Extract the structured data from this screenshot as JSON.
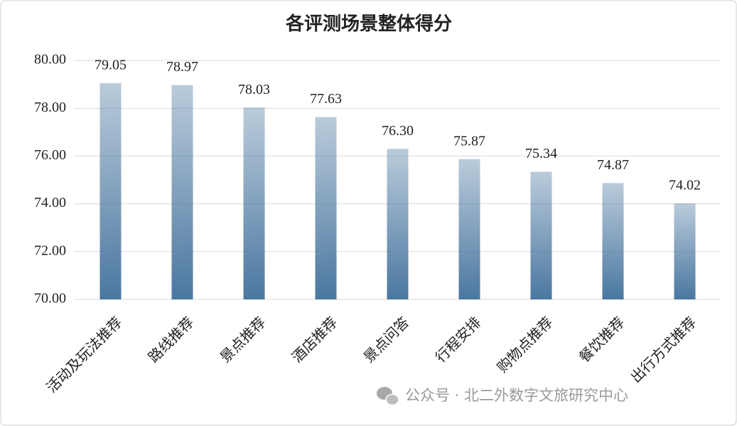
{
  "chart_data": {
    "type": "bar",
    "title": "各评测场景整体得分",
    "categories": [
      "活动及玩法推荐",
      "路线推荐",
      "景点推荐",
      "酒店推荐",
      "景点问答",
      "行程安排",
      "购物点推荐",
      "餐饮推荐",
      "出行方式推荐"
    ],
    "values": [
      79.05,
      78.97,
      78.03,
      77.63,
      76.3,
      75.87,
      75.34,
      74.87,
      74.02
    ],
    "value_labels": [
      "79.05",
      "78.97",
      "78.03",
      "77.63",
      "76.30",
      "75.87",
      "75.34",
      "74.87",
      "74.02"
    ],
    "color": "#4a77a0",
    "ylim": [
      70,
      80
    ],
    "yticks": [
      {
        "value": 70,
        "label": "70.00"
      },
      {
        "value": 72,
        "label": "72.00"
      },
      {
        "value": 74,
        "label": "74.00"
      },
      {
        "value": 76,
        "label": "76.00"
      },
      {
        "value": 78,
        "label": "78.00"
      },
      {
        "value": 80,
        "label": "80.00"
      }
    ],
    "grid": true,
    "watermark": "公众号 · 北二外数字文旅研究中心"
  }
}
